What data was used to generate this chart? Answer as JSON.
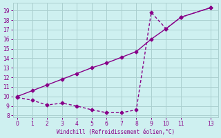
{
  "line_dip_x": [
    0,
    1,
    2,
    3,
    4,
    5,
    6,
    7,
    8,
    9,
    10,
    11,
    13
  ],
  "line_dip_y": [
    9.9,
    9.6,
    9.1,
    9.3,
    9.0,
    8.6,
    8.3,
    8.3,
    8.6,
    18.8,
    17.1,
    18.3,
    19.3
  ],
  "line_str_x": [
    0,
    1,
    2,
    3,
    4,
    5,
    6,
    7,
    8,
    9,
    10,
    11,
    13
  ],
  "line_str_y": [
    10.0,
    10.6,
    11.2,
    11.8,
    12.4,
    13.0,
    13.5,
    14.1,
    14.7,
    16.0,
    17.1,
    18.3,
    19.3
  ],
  "color": "#880088",
  "bg_color": "#cef0f0",
  "grid_color": "#aacfcf",
  "xlabel": "Windchill (Refroidissement éolien,°C)",
  "xlim": [
    -0.3,
    13.5
  ],
  "ylim": [
    7.8,
    19.8
  ],
  "xticks": [
    0,
    1,
    2,
    3,
    4,
    5,
    6,
    7,
    8,
    9,
    10,
    11,
    13
  ],
  "yticks": [
    8,
    9,
    10,
    11,
    12,
    13,
    14,
    15,
    16,
    17,
    18,
    19
  ],
  "marker": "D",
  "markersize": 2.5,
  "linewidth": 1.0
}
